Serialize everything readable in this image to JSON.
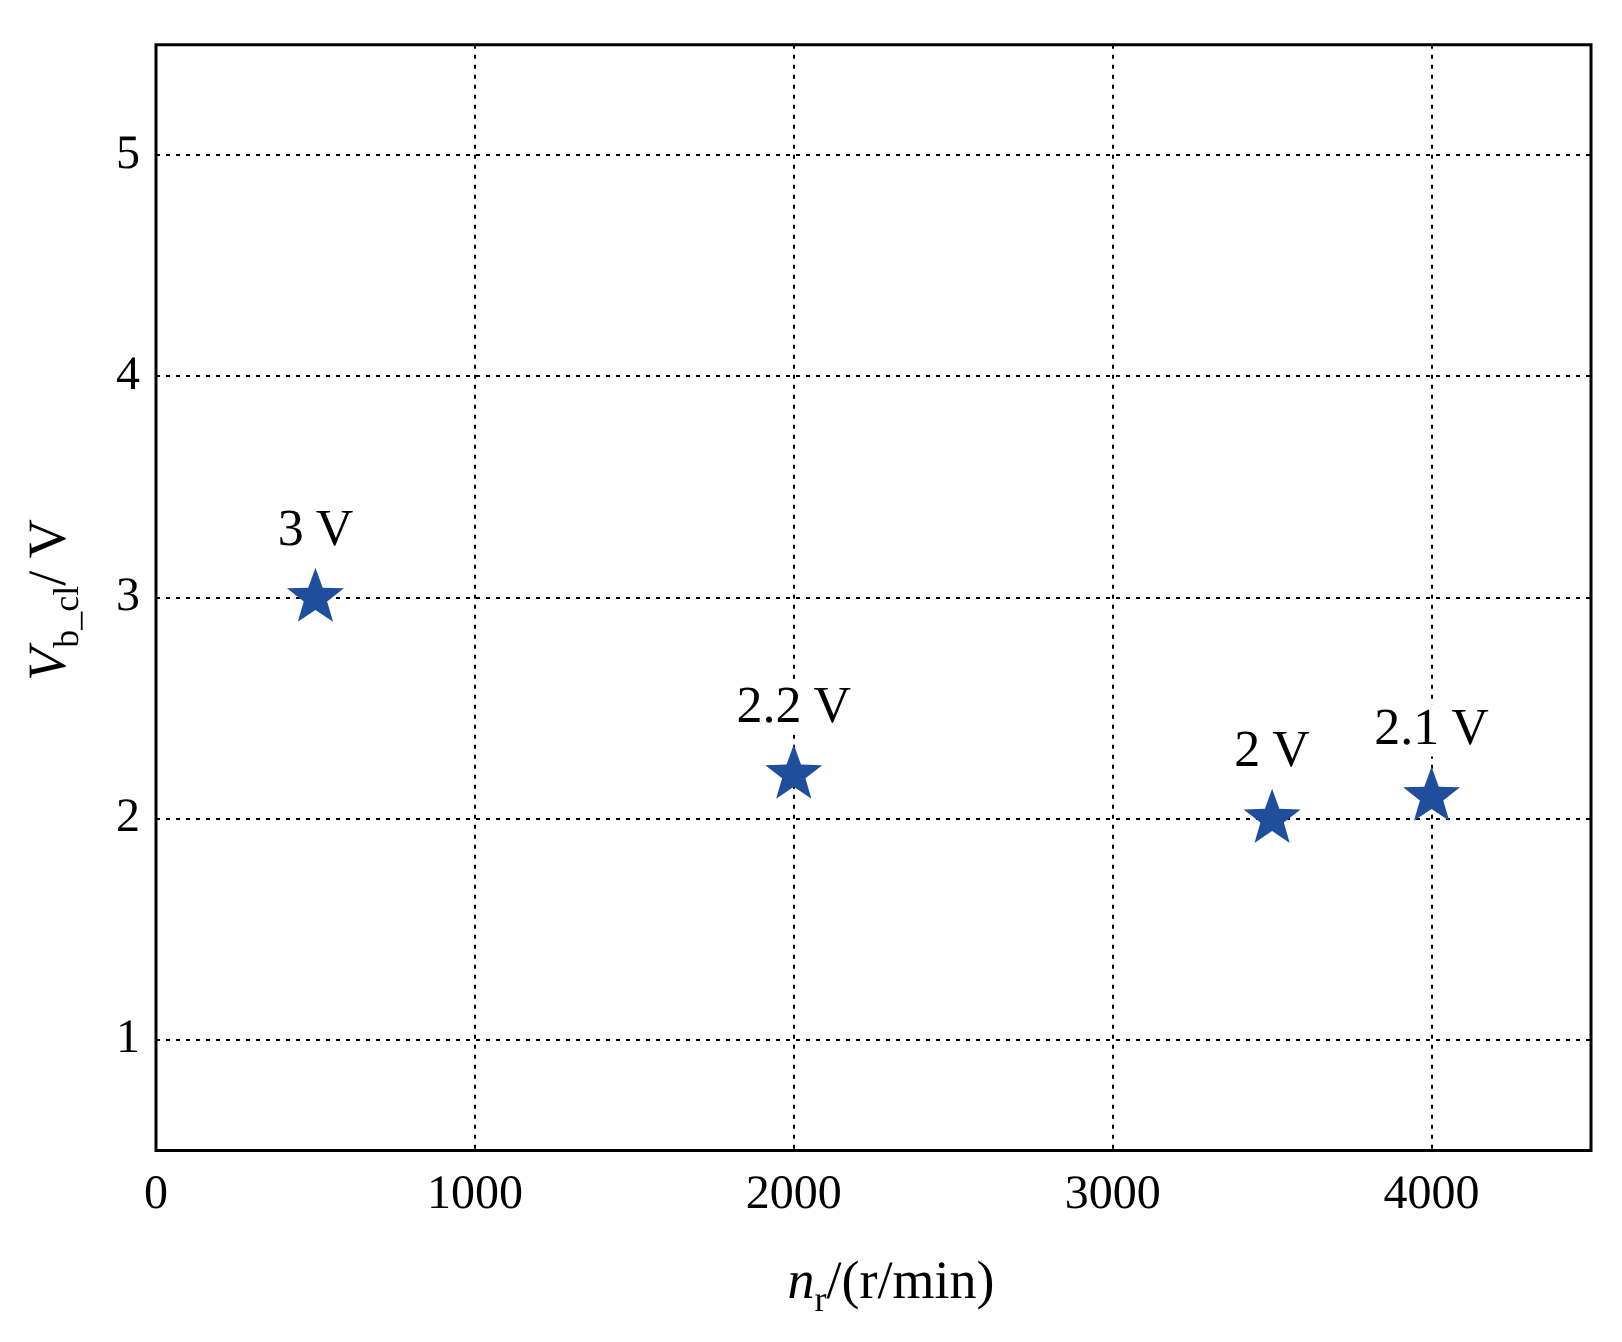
{
  "chart_data": {
    "type": "scatter",
    "xlabel": "n$_{r}$/(r/min)",
    "ylabel": "V$_{b_cl}$/ V",
    "x": [
      500,
      2000,
      3500,
      4000
    ],
    "series": [
      {
        "color": "#1f4e9c",
        "values": [
          3,
          2.2,
          2,
          2.1
        ],
        "value_labels": [
          "3 V",
          "2.2 V",
          "2 V",
          "2.1 V"
        ]
      }
    ],
    "xlim": [
      0,
      4500
    ],
    "xticks": [
      0,
      1000,
      2000,
      3000,
      4000
    ],
    "ylim": [
      0.5,
      5.5
    ],
    "yticks": [
      1,
      2,
      3,
      4,
      5
    ],
    "grid": true,
    "legend": false,
    "marker": "star"
  }
}
